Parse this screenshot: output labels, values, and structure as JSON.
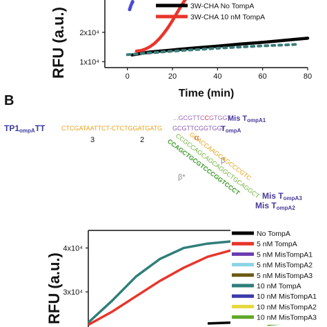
{
  "chart_data": [
    {
      "type": "line",
      "ylabel": "RFU (a.u.)",
      "xlabel": "Time (min)",
      "xlim": [
        -10,
        80
      ],
      "x_ticks": [
        "0",
        "20",
        "40",
        "60",
        "80"
      ],
      "y_ticks": [
        "1x10⁴",
        "2x10⁴"
      ],
      "ylim": [
        8000,
        31000
      ],
      "legend_position": "top-right",
      "series": [
        {
          "name": "3W-CHA No TompA",
          "color": "#000000",
          "style": "solid",
          "x": [
            2,
            10,
            20,
            30,
            40,
            50,
            60,
            70,
            80
          ],
          "y": [
            12300,
            13300,
            14000,
            14700,
            15300,
            16000,
            16600,
            17300,
            18000
          ]
        },
        {
          "name": "3W-CHA  10 nM TompA",
          "color": "#e8352a",
          "style": "solid",
          "x": [
            4,
            6,
            8,
            10,
            12,
            14,
            16,
            18,
            20,
            22,
            24,
            26
          ],
          "y": [
            13600,
            13800,
            14300,
            15100,
            16200,
            17700,
            19500,
            21600,
            24000,
            26600,
            29200,
            31500
          ]
        },
        {
          "name": "",
          "color": "#4a4ad8",
          "style": "dots",
          "x": [
            1,
            1.3,
            1.6,
            2,
            2.3
          ],
          "y": [
            27800,
            28500,
            29200,
            29900,
            30400
          ]
        },
        {
          "name": "",
          "color": "#3a7d7b",
          "style": "dashed",
          "x": [
            0,
            10,
            20,
            30,
            40,
            50,
            60,
            70,
            75
          ],
          "y": [
            12400,
            13000,
            13600,
            14100,
            14600,
            15000,
            15400,
            15700,
            15900
          ]
        }
      ]
    },
    {
      "type": "line",
      "ylabel": "RFU (a.u.)",
      "y_ticks": [
        "4x10⁴",
        "3x10⁴"
      ],
      "ylim": [
        22000,
        44000
      ],
      "xlim": [
        0,
        100
      ],
      "legend_position": "top-right",
      "series": [
        {
          "name": "No TompA",
          "color": "#000000",
          "style": "solid",
          "x": [
            50,
            60,
            70,
            80,
            90,
            100
          ],
          "y": [
            22800,
            23000,
            23200,
            23300,
            23400,
            23500
          ]
        },
        {
          "name": "5 nM TompA",
          "color": "#e8352a",
          "style": "solid",
          "x": [
            0,
            10,
            20,
            30,
            40,
            50,
            60,
            70,
            80,
            90,
            100
          ],
          "y": [
            22500,
            25500,
            29000,
            32500,
            35500,
            38000,
            39500,
            40500,
            41000,
            41300,
            41500
          ]
        },
        {
          "name": "5 nM MisTompA1",
          "color": "#6a3bb0",
          "style": "solid",
          "x": [],
          "y": []
        },
        {
          "name": "5 nM MisTompA2",
          "color": "#8ad3e6",
          "style": "solid",
          "x": [],
          "y": []
        },
        {
          "name": "5 nM MisTompA3",
          "color": "#6b5a14",
          "style": "solid",
          "x": [],
          "y": []
        },
        {
          "name": "10 nM TompA",
          "color": "#2f7e79",
          "style": "solid",
          "x": [
            0,
            10,
            20,
            30,
            40,
            50,
            60,
            70,
            80,
            90,
            100
          ],
          "y": [
            23000,
            28000,
            33500,
            37500,
            40000,
            41000,
            41500,
            41600,
            41500,
            41300,
            41000
          ]
        },
        {
          "name": "10 nM MisTompA1",
          "color": "#3b3baa",
          "style": "solid",
          "x": [],
          "y": []
        },
        {
          "name": "10 nM MisTompA2",
          "color": "#e6d83a",
          "style": "solid",
          "x": [],
          "y": []
        },
        {
          "name": "10 nM MisTompA3",
          "color": "#5fa82a",
          "style": "solid",
          "x": [
            75,
            85,
            95,
            100
          ],
          "y": [
            22500,
            23000,
            23300,
            23400
          ]
        }
      ]
    }
  ],
  "panel_label": "B",
  "diagram": {
    "tp1": "TP1",
    "tp1_sub": "ompA",
    "tt": "TT",
    "seq_main": "CTCGATAATTCT-CTCTGGATGATG",
    "seq_ompa_top": "...GCGTTC",
    "seq_ompa_top_mis": "C",
    "seq_ompa_top_end": "GTGGT",
    "seq_ompa": "GCGTTCGGTGGT",
    "mis_label_1": "Mis T",
    "mis_sub_1": "ompA1",
    "tompa_label": "T",
    "tompa_sub": "ompA",
    "mis_label_3": "Mis T",
    "mis_sub_3": "ompA3",
    "mis_label_2": "Mis T",
    "mis_sub_2": "ompA2",
    "num_3": "3",
    "num_2": "2",
    "alpha": "α",
    "beta": "β",
    "beta_star": "β*",
    "diag_green_1": "GCACCAAGCAGCCCGTC",
    "diag_green_2": "CCGCCAGCAGCAGGCTGCAGGCT",
    "diag_green_3": "CCAGCTGCGTCCCGGTCCCT"
  }
}
